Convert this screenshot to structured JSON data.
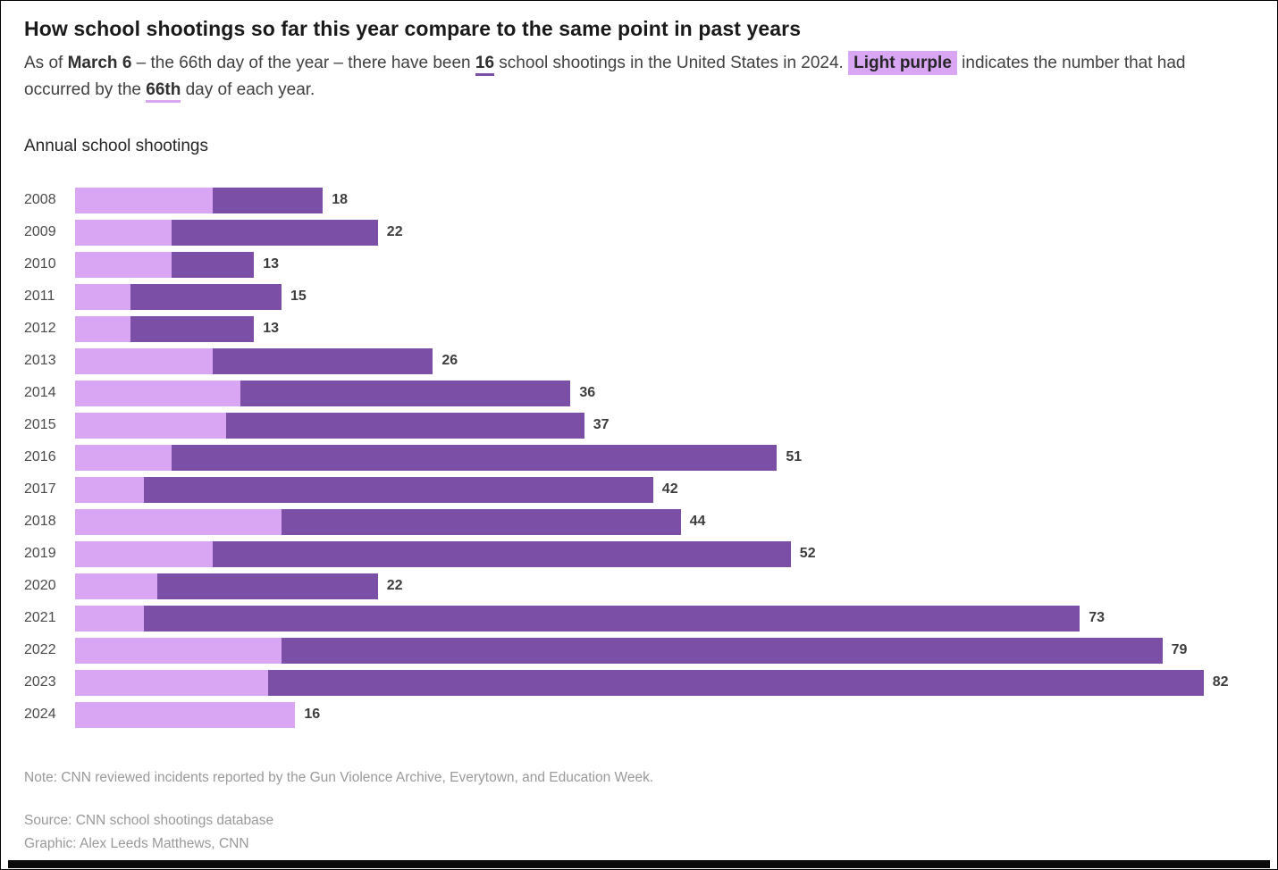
{
  "header": {
    "title": "How school shootings so far this year compare to the same point in past years",
    "subtitle_parts": [
      {
        "text": "As of ",
        "style": "normal"
      },
      {
        "text": "March 6",
        "style": "bold"
      },
      {
        "text": " – the 66th day of the year – there have been ",
        "style": "normal"
      },
      {
        "text": "16",
        "style": "bold-underline-dark"
      },
      {
        "text": " school shootings in the United States in 2024. ",
        "style": "normal"
      },
      {
        "text": "Light purple",
        "style": "highlight"
      },
      {
        "text": " indicates the number that had occurred by the ",
        "style": "normal"
      },
      {
        "text": "66th",
        "style": "bold-underline-light"
      },
      {
        "text": " day of each year.",
        "style": "normal"
      }
    ]
  },
  "chart": {
    "title": "Annual school shootings"
  },
  "chart_data": {
    "type": "bar",
    "orientation": "horizontal",
    "title": "Annual school shootings",
    "categories": [
      "2008",
      "2009",
      "2010",
      "2011",
      "2012",
      "2013",
      "2014",
      "2015",
      "2016",
      "2017",
      "2018",
      "2019",
      "2020",
      "2021",
      "2022",
      "2023",
      "2024"
    ],
    "series": [
      {
        "name": "Total annual school shootings",
        "color": "#7b4fa6",
        "values": [
          18,
          22,
          13,
          15,
          13,
          26,
          36,
          37,
          51,
          42,
          44,
          52,
          22,
          73,
          79,
          82,
          16
        ]
      },
      {
        "name": "Shootings by the 66th day of the year",
        "color": "#d9a6f4",
        "values": [
          10,
          7,
          7,
          4,
          4,
          10,
          12,
          11,
          7,
          5,
          15,
          10,
          6,
          5,
          15,
          14,
          16
        ]
      }
    ],
    "value_labels": [
      18,
      22,
      13,
      15,
      13,
      26,
      36,
      37,
      51,
      42,
      44,
      52,
      22,
      73,
      79,
      82,
      16
    ],
    "xlim": [
      0,
      87
    ],
    "grid": false,
    "legend_position": "described-in-subtitle"
  },
  "footer": {
    "note": "Note: CNN reviewed incidents reported by the Gun Violence Archive, Everytown, and Education Week.",
    "source": "Source: CNN school shootings database",
    "graphic": "Graphic: Alex Leeds Matthews, CNN"
  },
  "colors": {
    "light_purple": "#d9a6f4",
    "dark_purple": "#7b4fa6",
    "title_text": "#1a1a1a",
    "body_text": "#404040",
    "muted_text": "#999999"
  }
}
